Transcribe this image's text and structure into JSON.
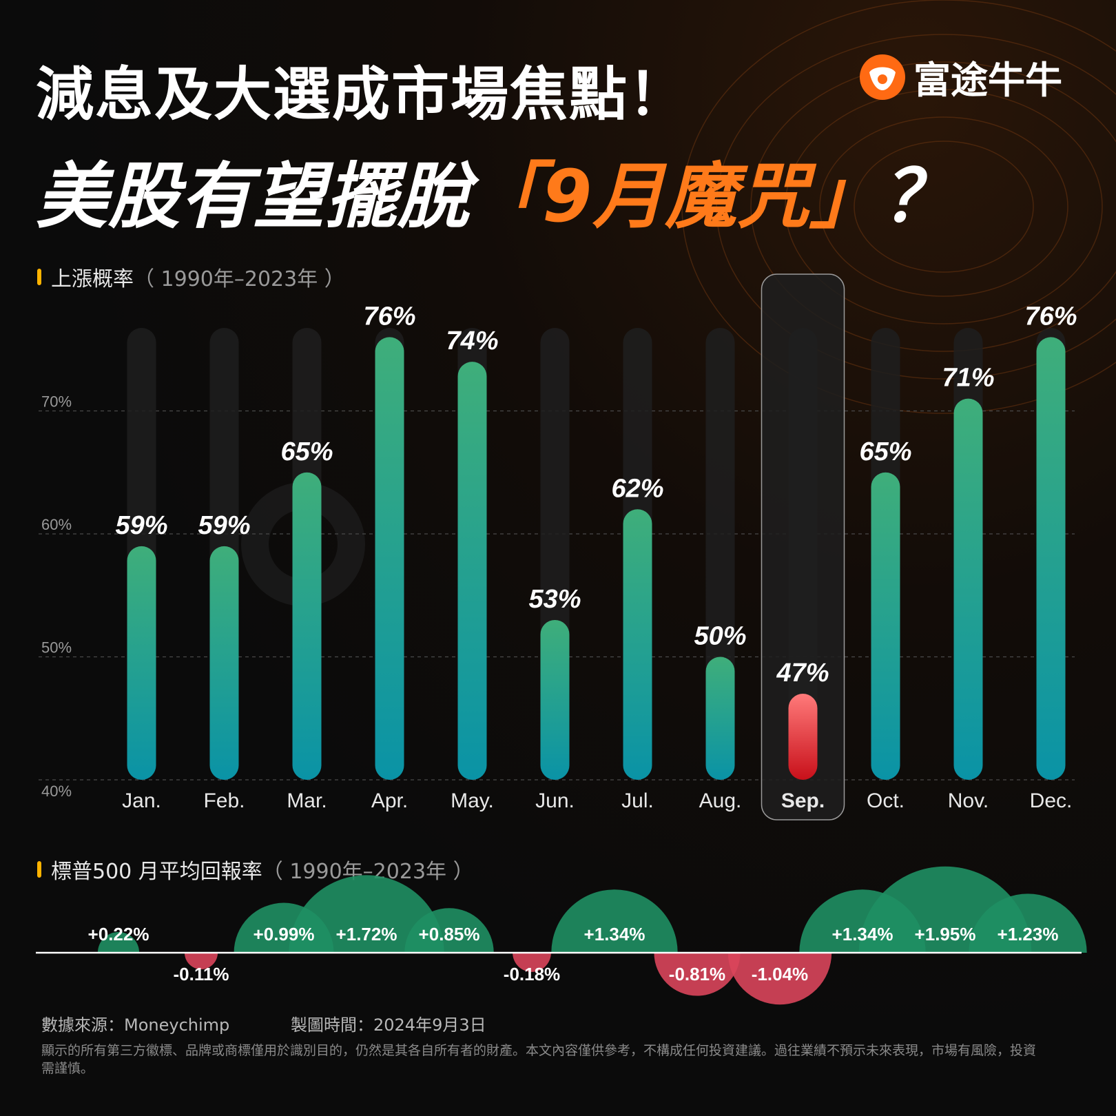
{
  "header": {
    "title_line1": "減息及大選成市場焦點！",
    "title_line2_prefix": "美股有望擺脫",
    "title_line2_highlight": "「9月魔咒」",
    "title_line2_suffix": "？",
    "logo_text": "富途牛牛",
    "logo_icon": "bull-icon",
    "accent_color": "#ff7a1a"
  },
  "prob_section": {
    "label": "上漲概率",
    "period": "（ 1990年–2023年 ）"
  },
  "ret_section": {
    "label": "標普500 月平均回報率",
    "period": "（ 1990年–2023年 ）"
  },
  "chart_data": [
    {
      "type": "bar",
      "categories": [
        "Jan.",
        "Feb.",
        "Mar.",
        "Apr.",
        "May.",
        "Jun.",
        "Jul.",
        "Aug.",
        "Sep.",
        "Oct.",
        "Nov.",
        "Dec."
      ],
      "values": [
        59,
        59,
        65,
        76,
        74,
        53,
        62,
        50,
        47,
        65,
        71,
        76
      ],
      "data_labels": [
        "59%",
        "59%",
        "65%",
        "76%",
        "74%",
        "53%",
        "62%",
        "50%",
        "47%",
        "65%",
        "71%",
        "76%"
      ],
      "ylim": [
        40,
        80
      ],
      "yticks": [
        40,
        50,
        60,
        70
      ],
      "ytick_labels": [
        "40%",
        "50%",
        "60%",
        "70%"
      ],
      "highlight_category": "Sep.",
      "colors": {
        "bar_top": "#3fae7a",
        "bar_bottom": "#0a93a6",
        "highlight_top": "#ff7a7a",
        "highlight_bottom": "#c8101a"
      },
      "grid": "dashed horizontal"
    },
    {
      "type": "bubble",
      "categories": [
        "Jan.",
        "Feb.",
        "Mar.",
        "Apr.",
        "May.",
        "Jun.",
        "Jul.",
        "Aug.",
        "Sep.",
        "Oct.",
        "Nov.",
        "Dec."
      ],
      "values": [
        0.22,
        -0.11,
        0.99,
        1.72,
        0.85,
        -0.18,
        1.34,
        -0.81,
        -1.04,
        1.34,
        1.95,
        1.23
      ],
      "data_labels": [
        "+0.22%",
        "-0.11%",
        "+0.99%",
        "+1.72%",
        "+0.85%",
        "-0.18%",
        "+1.34%",
        "-0.81%",
        "-1.04%",
        "+1.34%",
        "+1.95%",
        "+1.23%"
      ],
      "colors": {
        "positive": "#1f8f63",
        "negative": "#d9455b"
      }
    }
  ],
  "footer": {
    "source": "數據來源：Moneychimp",
    "date": "製圖時間：2024年9月3日",
    "disclaimer": "顯示的所有第三方徽標、品牌或商標僅用於識別目的，仍然是其各自所有者的財產。本文內容僅供參考，不構成任何投資建議。過往業績不預示未來表現，市場有風險，投資需謹慎。"
  }
}
